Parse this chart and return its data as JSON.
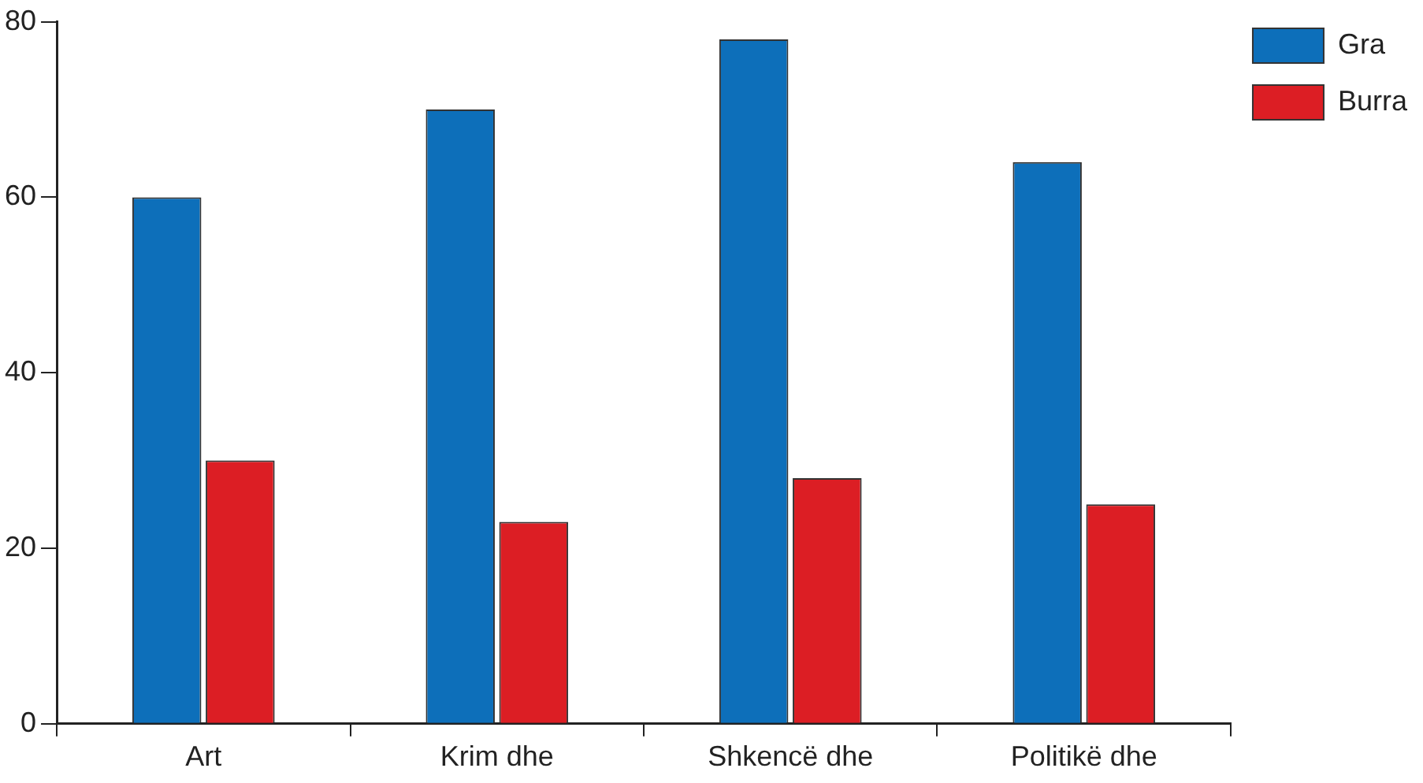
{
  "chart_data": {
    "type": "bar",
    "categories": [
      "Art",
      "Krim dhe",
      "Shkencë dhe",
      "Politikë dhe"
    ],
    "series": [
      {
        "name": "Gra",
        "color": "#0d6fba",
        "values": [
          60,
          70,
          78,
          64
        ]
      },
      {
        "name": "Burra",
        "color": "#dc1e24",
        "values": [
          30,
          23,
          28,
          25
        ]
      }
    ],
    "ylim": [
      0,
      80
    ],
    "yticks": [
      0,
      20,
      40,
      60,
      80
    ],
    "grid": false,
    "legend": "top right"
  }
}
